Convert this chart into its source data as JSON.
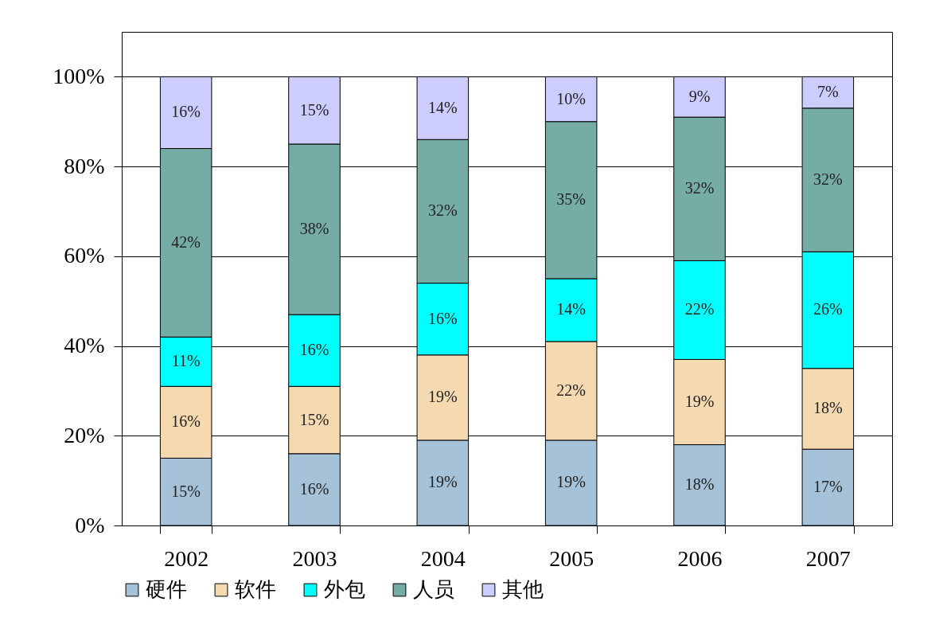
{
  "chart_data": {
    "type": "bar",
    "stacked": true,
    "categories": [
      "2002",
      "2003",
      "2004",
      "2005",
      "2006",
      "2007"
    ],
    "series": [
      {
        "name": "硬件",
        "color": "#a6c2d8",
        "values": [
          15,
          16,
          19,
          19,
          18,
          17
        ],
        "value_labels": [
          "15%",
          "16%",
          "19%",
          "19%",
          "18%",
          "17%"
        ]
      },
      {
        "name": "软件",
        "color": "#f5d9b0",
        "values": [
          16,
          15,
          19,
          22,
          19,
          18
        ],
        "value_labels": [
          "16%",
          "15%",
          "19%",
          "22%",
          "19%",
          "18%"
        ]
      },
      {
        "name": "外包",
        "color": "#00ffff",
        "values": [
          11,
          16,
          16,
          14,
          22,
          26
        ],
        "value_labels": [
          "11%",
          "16%",
          "16%",
          "14%",
          "22%",
          "26%"
        ]
      },
      {
        "name": "人员",
        "color": "#76aca6",
        "values": [
          42,
          38,
          32,
          35,
          32,
          32
        ],
        "value_labels": [
          "42%",
          "38%",
          "32%",
          "35%",
          "32%",
          "32%"
        ]
      },
      {
        "name": "其他",
        "color": "#ccccff",
        "values": [
          16,
          15,
          14,
          10,
          9,
          7
        ],
        "value_labels": [
          "16%",
          "15%",
          "14%",
          "10%",
          "9%",
          "7%"
        ]
      }
    ],
    "ylim": [
      0,
      110
    ],
    "yticks": [
      {
        "value": 0,
        "label": "0%"
      },
      {
        "value": 20,
        "label": "20%"
      },
      {
        "value": 40,
        "label": "40%"
      },
      {
        "value": 60,
        "label": "60%"
      },
      {
        "value": 80,
        "label": "80%"
      },
      {
        "value": 100,
        "label": "100%"
      }
    ],
    "grid": "y",
    "legend": "bottom"
  }
}
